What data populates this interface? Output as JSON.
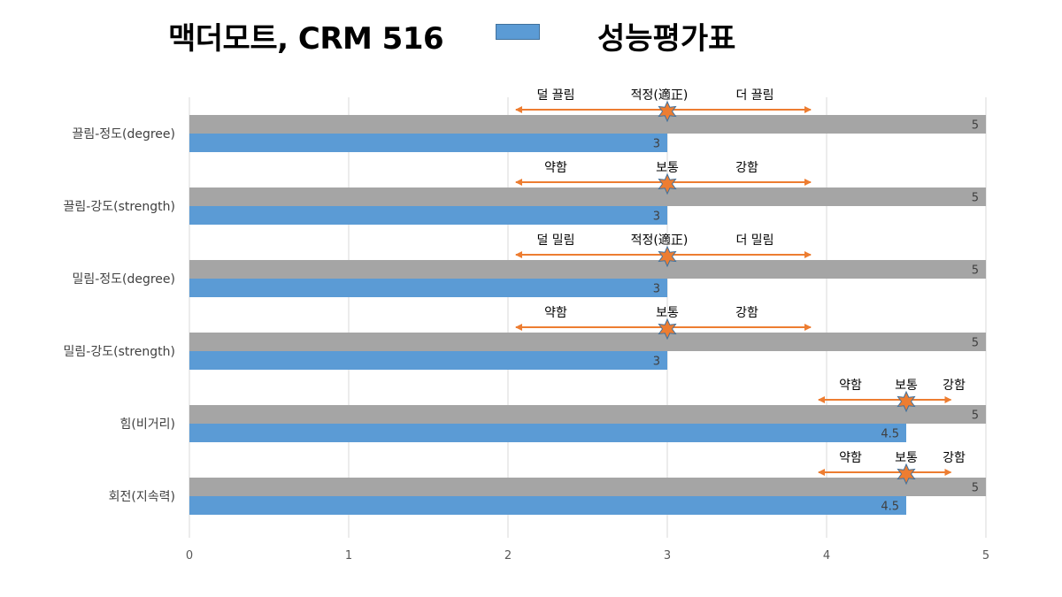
{
  "header": {
    "title": "맥더모트, CRM 516",
    "legend_label": "성능평가표",
    "legend_color": "#5b9bd5"
  },
  "chart_data": {
    "type": "bar",
    "orientation": "horizontal",
    "categories": [
      "끌림-정도(degree)",
      "끌림-강도(strength)",
      "밀림-정도(degree)",
      "밀림-강도(strength)",
      "힘(비거리)",
      "회전(지속력)"
    ],
    "series": [
      {
        "name": "",
        "values": [
          5,
          5,
          5,
          5,
          5,
          5
        ],
        "data_labels": [
          "5",
          "5",
          "5",
          "5",
          "5",
          "5"
        ],
        "color": "#a5a5a5"
      },
      {
        "name": "성능평가표",
        "values": [
          3,
          3,
          3,
          3,
          4.5,
          4.5
        ],
        "data_labels": [
          "3",
          "3",
          "3",
          "3",
          "4.5",
          "4.5"
        ],
        "color": "#5b9bd5"
      }
    ],
    "xlim": [
      0,
      5
    ],
    "x_ticks": [
      "0",
      "1",
      "2",
      "3",
      "4",
      "5"
    ],
    "grid": true,
    "annotations": [
      {
        "low": "덜 끌림",
        "mid": "적정(適正)",
        "high": "더 끌림",
        "marker": 3,
        "arrow_from": 2.05,
        "arrow_to": 3.9,
        "low_at": 2.3,
        "mid_at": 2.95,
        "high_at": 3.55
      },
      {
        "low": "약함",
        "mid": "보통",
        "high": "강함",
        "marker": 3,
        "arrow_from": 2.05,
        "arrow_to": 3.9,
        "low_at": 2.3,
        "mid_at": 3.0,
        "high_at": 3.5
      },
      {
        "low": "덜 밀림",
        "mid": "적정(適正)",
        "high": "더 밀림",
        "marker": 3,
        "arrow_from": 2.05,
        "arrow_to": 3.9,
        "low_at": 2.3,
        "mid_at": 2.95,
        "high_at": 3.55
      },
      {
        "low": "약함",
        "mid": "보통",
        "high": "강함",
        "marker": 3,
        "arrow_from": 2.05,
        "arrow_to": 3.9,
        "low_at": 2.3,
        "mid_at": 3.0,
        "high_at": 3.5
      },
      {
        "low": "약함",
        "mid": "보통",
        "high": "강함",
        "marker": 4.5,
        "arrow_from": 3.95,
        "arrow_to": 4.78,
        "low_at": 4.15,
        "mid_at": 4.5,
        "high_at": 4.8
      },
      {
        "low": "약함",
        "mid": "보통",
        "high": "강함",
        "marker": 4.5,
        "arrow_from": 3.95,
        "arrow_to": 4.78,
        "low_at": 4.15,
        "mid_at": 4.5,
        "high_at": 4.8
      }
    ],
    "arrow_color": "#ed7d31",
    "marker_color": "#ed7d31"
  }
}
